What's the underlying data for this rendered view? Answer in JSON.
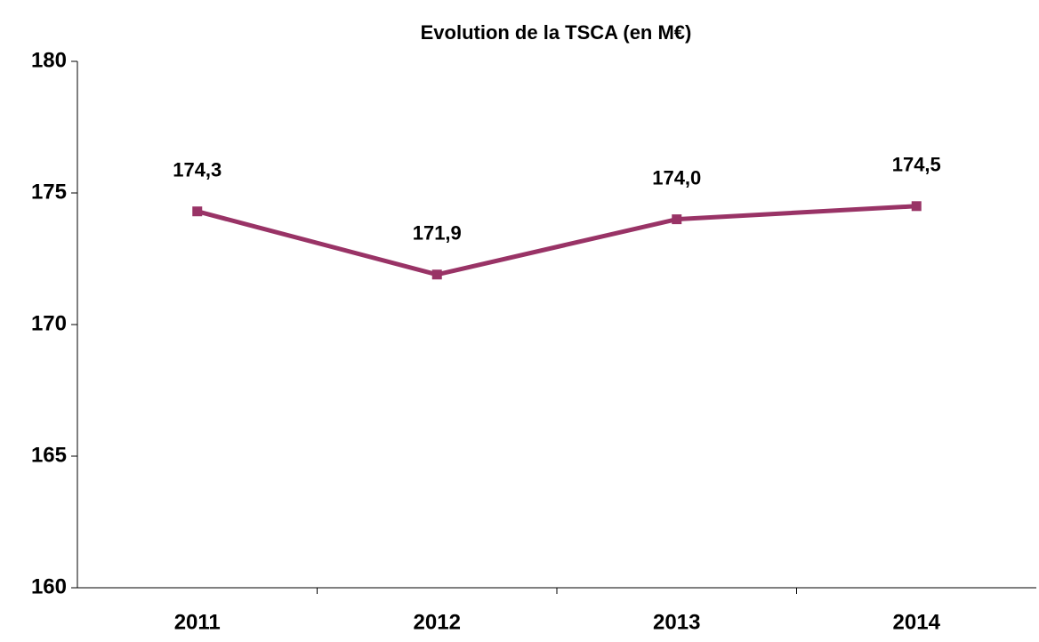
{
  "chart_data": {
    "type": "line",
    "title": "Evolution de la TSCA (en M€)",
    "categories": [
      "2011",
      "2012",
      "2013",
      "2014"
    ],
    "series": [
      {
        "color": "#993366",
        "values": [
          174.3,
          171.9,
          174.0,
          174.5
        ],
        "value_labels": [
          "174,3",
          "171,9",
          "174,0",
          "174,5"
        ]
      }
    ],
    "ylim": [
      160,
      180
    ],
    "yticks": [
      160,
      165,
      170,
      175,
      180
    ]
  }
}
